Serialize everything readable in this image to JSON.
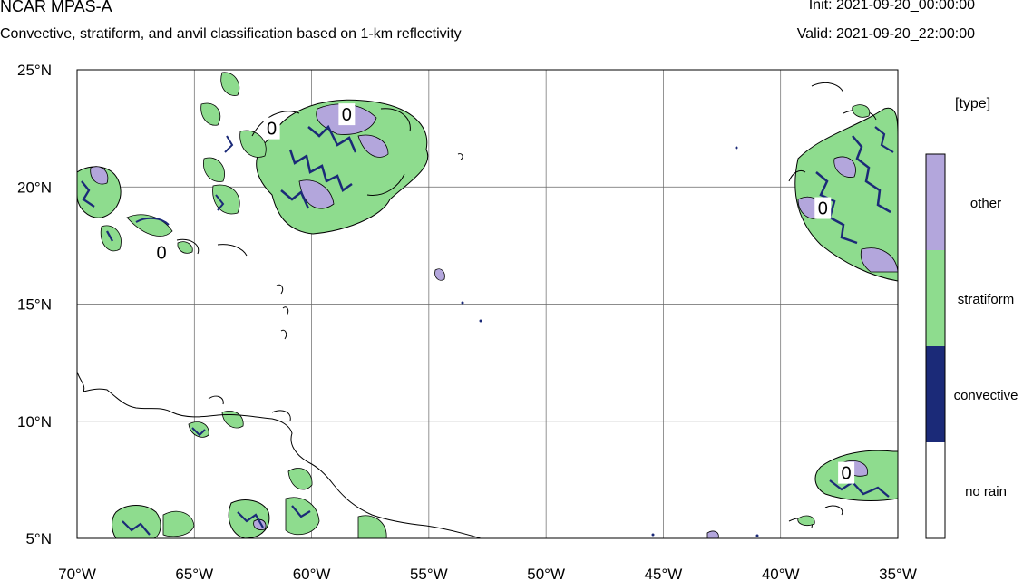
{
  "header": {
    "title": "NCAR MPAS-A",
    "subtitle": "Convective, stratiform, and anvil classification based on 1-km reflectivity",
    "init": "Init: 2021-09-20_00:00:00",
    "valid": "Valid: 2021-09-20_22:00:00"
  },
  "map": {
    "lon_range": [
      -70,
      -35
    ],
    "lat_range": [
      5,
      25
    ],
    "x_ticks": [
      {
        "lon": -70,
        "label": "70°W"
      },
      {
        "lon": -65,
        "label": "65°W"
      },
      {
        "lon": -60,
        "label": "60°W"
      },
      {
        "lon": -55,
        "label": "55°W"
      },
      {
        "lon": -50,
        "label": "50°W"
      },
      {
        "lon": -45,
        "label": "45°W"
      },
      {
        "lon": -40,
        "label": "40°W"
      },
      {
        "lon": -35,
        "label": "35°W"
      }
    ],
    "y_ticks": [
      {
        "lat": 25,
        "label": "25°N"
      },
      {
        "lat": 20,
        "label": "20°N"
      },
      {
        "lat": 15,
        "label": "15°N"
      },
      {
        "lat": 10,
        "label": "10°N"
      },
      {
        "lat": 5,
        "label": "5°N"
      }
    ],
    "contour_labels": [
      {
        "lon": -61.7,
        "lat": 22.5,
        "text": "0"
      },
      {
        "lon": -58.5,
        "lat": 23.1,
        "text": "0"
      },
      {
        "lon": -66.4,
        "lat": 17.2,
        "text": "0"
      },
      {
        "lon": -38.2,
        "lat": 19.1,
        "text": "0"
      },
      {
        "lon": -37.2,
        "lat": 7.8,
        "text": "0"
      }
    ]
  },
  "legend": {
    "title": "[type]",
    "items": [
      {
        "label": "other",
        "color": "#b3a6dc"
      },
      {
        "label": "stratiform",
        "color": "#8edc8e"
      },
      {
        "label": "convective",
        "color": "#1b2a78"
      },
      {
        "label": "no rain",
        "color": "#ffffff"
      }
    ]
  },
  "colors": {
    "other": "#b3a6dc",
    "stratiform": "#8edc8e",
    "convective": "#1b2a78",
    "no_rain": "#ffffff"
  }
}
